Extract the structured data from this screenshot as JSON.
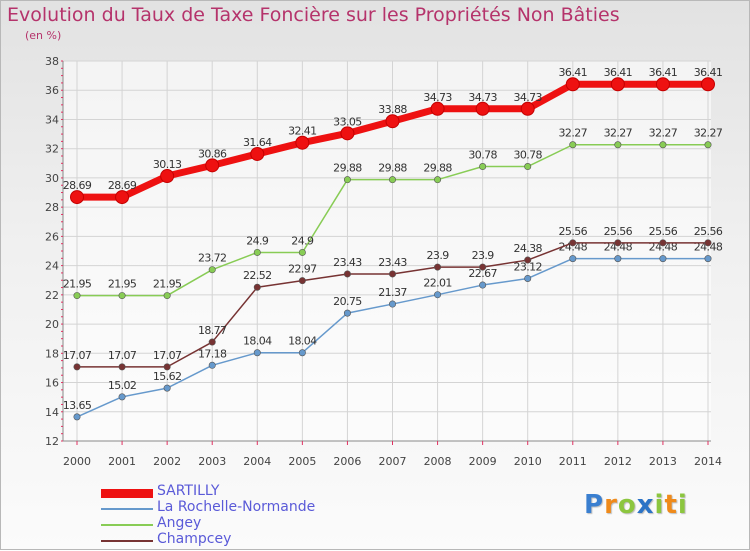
{
  "chart_data": {
    "type": "line",
    "title": "Evolution du Taux de Taxe Foncière sur les Propriétés Non Bâties",
    "subtitle": "(en %)",
    "x": [
      "2000",
      "2001",
      "2002",
      "2003",
      "2004",
      "2005",
      "2006",
      "2007",
      "2008",
      "2009",
      "2010",
      "2011",
      "2012",
      "2013",
      "2014"
    ],
    "yticks": [
      12,
      14,
      16,
      18,
      20,
      22,
      24,
      26,
      28,
      30,
      32,
      34,
      36,
      38
    ],
    "ylim": [
      12,
      38
    ],
    "grid": true,
    "legend_position": "bottom-left",
    "series": [
      {
        "name": "SARTILLY",
        "color": "#ee1111",
        "values": [
          28.69,
          28.69,
          30.13,
          30.86,
          31.64,
          32.41,
          33.05,
          33.88,
          34.73,
          34.73,
          34.73,
          36.41,
          36.41,
          36.41,
          36.41
        ],
        "labels": [
          "28.69",
          "28.69",
          "30.13",
          "30.86",
          "31.64",
          "32.41",
          "33.05",
          "33.88",
          "34.73",
          "34.73",
          "34.73",
          "36.41",
          "36.41",
          "36.41",
          "36.41"
        ]
      },
      {
        "name": "La Rochelle-Normande",
        "color": "#6699cc",
        "values": [
          13.65,
          15.02,
          15.62,
          17.18,
          18.04,
          18.04,
          20.75,
          21.37,
          22.01,
          22.67,
          23.12,
          24.48,
          24.48,
          24.48,
          24.48
        ],
        "labels": [
          "13.65",
          "15.02",
          "15.62",
          "17.18",
          "18.04",
          "18.04",
          "20.75",
          "21.37",
          "22.01",
          "22.67",
          "23.12",
          "24.48",
          "24.48",
          "24.48",
          "24.48"
        ]
      },
      {
        "name": "Angey",
        "color": "#88cc55",
        "values": [
          21.95,
          21.95,
          21.95,
          23.72,
          24.9,
          24.9,
          29.88,
          29.88,
          29.88,
          30.78,
          30.78,
          32.27,
          32.27,
          32.27,
          32.27
        ],
        "labels": [
          "21.95",
          "21.95",
          "21.95",
          "23.72",
          "24.9",
          "24.9",
          "29.88",
          "29.88",
          "29.88",
          "30.78",
          "30.78",
          "32.27",
          "32.27",
          "32.27",
          "32.27"
        ]
      },
      {
        "name": "Champcey",
        "color": "#773333",
        "values": [
          17.07,
          17.07,
          17.07,
          18.77,
          22.52,
          22.97,
          23.43,
          23.43,
          23.9,
          23.9,
          24.38,
          25.56,
          25.56,
          25.56,
          25.56
        ],
        "labels": [
          "17.07",
          "17.07",
          "17.07",
          "18.77",
          "22.52",
          "22.97",
          "23.43",
          "23.43",
          "23.9",
          "23.9",
          "24.38",
          "25.56",
          "25.56",
          "25.56",
          "25.56"
        ]
      }
    ]
  },
  "logo": {
    "letters": [
      "P",
      "r",
      "o",
      "x",
      "i",
      "t",
      "i"
    ],
    "colors": [
      "#3a7fd0",
      "#ef8a1a",
      "#8cc63f",
      "#2b73c6",
      "#8cc63f",
      "#ef8a1a",
      "#8cc63f"
    ]
  }
}
